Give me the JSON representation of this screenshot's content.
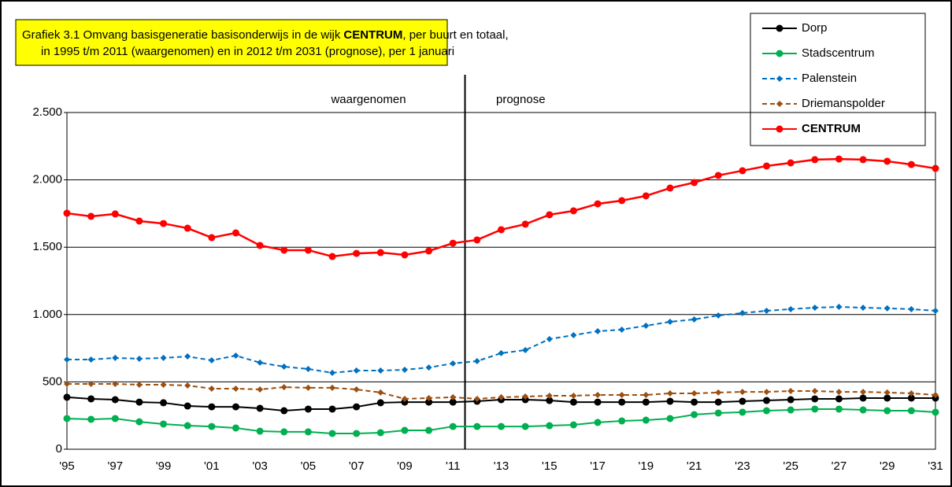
{
  "chart_data": {
    "type": "line",
    "title": [
      "Grafiek 3.1  Omvang basisgeneratie basisonderwijs in de wijk",
      "CENTRUM",
      ", per buurt en totaal,",
      "in 1995 t/m 2011 (waargenomen) en in 2012 t/m 2031 (prognose), per 1 januari"
    ],
    "annotations": [
      "waargenomen",
      "prognose"
    ],
    "categories": [
      "'95",
      null,
      "'97",
      null,
      "'99",
      null,
      "'01",
      null,
      "'03",
      null,
      "'05",
      null,
      "'07",
      null,
      "'09",
      null,
      "'11",
      null,
      "'13",
      null,
      "'15",
      null,
      "'17",
      null,
      "'19",
      null,
      "'21",
      null,
      "'23",
      null,
      "'25",
      null,
      "'27",
      null,
      "'29",
      null,
      "'31"
    ],
    "ylim": [
      0,
      2500
    ],
    "yticks": [
      0,
      500,
      {
        "value": 1000,
        "label": "1.000"
      },
      {
        "value": 1500,
        "label": "1.500"
      },
      {
        "value": 2000,
        "label": "2.000"
      },
      {
        "value": 2500,
        "label": "2.500"
      }
    ],
    "grid": true,
    "legend": "top-right",
    "series": [
      {
        "name": "Dorp",
        "color": "#000000",
        "dashed": false,
        "marker": "circle",
        "bold": false,
        "values": [
          386,
          374,
          368,
          350,
          345,
          321,
          315,
          315,
          304,
          286,
          298,
          298,
          315,
          345,
          350,
          350,
          350,
          356,
          368,
          368,
          362,
          350,
          350,
          350,
          350,
          356,
          350,
          350,
          356,
          362,
          368,
          374,
          374,
          380,
          380,
          380,
          380
        ]
      },
      {
        "name": "Stadscentrum",
        "color": "#00b050",
        "dashed": false,
        "marker": "circle",
        "bold": false,
        "values": [
          228,
          222,
          228,
          204,
          187,
          175,
          169,
          158,
          134,
          129,
          129,
          117,
          117,
          123,
          140,
          140,
          169,
          169,
          169,
          169,
          175,
          181,
          199,
          210,
          216,
          228,
          257,
          269,
          275,
          286,
          292,
          298,
          298,
          292,
          286,
          286,
          275
        ]
      },
      {
        "name": "Palenstein",
        "color": "#0070c0",
        "dashed": true,
        "marker": "diamond",
        "bold": false,
        "values": [
          666,
          666,
          678,
          672,
          678,
          689,
          660,
          695,
          643,
          613,
          596,
          567,
          584,
          584,
          590,
          607,
          637,
          654,
          713,
          736,
          818,
          847,
          876,
          888,
          917,
          946,
          964,
          993,
          1011,
          1028,
          1040,
          1051,
          1057,
          1051,
          1046,
          1040,
          1028
        ]
      },
      {
        "name": "Driemanspolder",
        "color": "#9c4f0f",
        "dashed": true,
        "marker": "diamond",
        "bold": false,
        "values": [
          485,
          485,
          485,
          479,
          479,
          473,
          450,
          450,
          444,
          461,
          456,
          456,
          444,
          421,
          374,
          380,
          386,
          374,
          386,
          391,
          397,
          397,
          403,
          403,
          403,
          415,
          415,
          421,
          426,
          426,
          432,
          432,
          426,
          426,
          421,
          415,
          403
        ]
      },
      {
        "name": "CENTRUM",
        "color": "#ff0000",
        "dashed": false,
        "marker": "circle",
        "bold": true,
        "values": [
          1752,
          1729,
          1747,
          1694,
          1676,
          1641,
          1571,
          1606,
          1513,
          1478,
          1478,
          1431,
          1454,
          1460,
          1443,
          1472,
          1530,
          1554,
          1630,
          1671,
          1741,
          1770,
          1822,
          1846,
          1881,
          1939,
          1980,
          2033,
          2068,
          2103,
          2126,
          2150,
          2155,
          2150,
          2138,
          2114,
          2085
        ]
      }
    ]
  }
}
